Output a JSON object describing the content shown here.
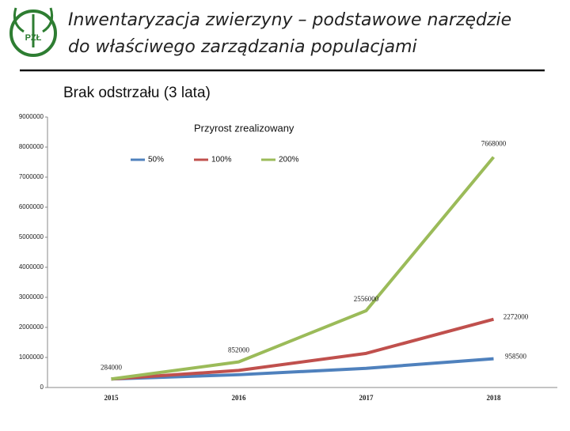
{
  "header": {
    "title_lines": [
      "Inwentaryzacja zwierzyny – podstawowe narzędzie",
      "do właściwego zarządzania populacjami"
    ],
    "logo_text": "PZŁ"
  },
  "slide_subtitle": "Brak odstrzału (3 lata)",
  "chart_data": {
    "type": "line",
    "title": "Przyrost zrealizowany",
    "categories": [
      "2015",
      "2016",
      "2017",
      "2018"
    ],
    "series": [
      {
        "name": "50%",
        "color": "#4f81bd",
        "values": [
          284000,
          426000,
          639000,
          958500
        ]
      },
      {
        "name": "100%",
        "color": "#c0504d",
        "values": [
          284000,
          568000,
          1136000,
          2272000
        ]
      },
      {
        "name": "200%",
        "color": "#9bbb59",
        "values": [
          284000,
          852000,
          2556000,
          7668000
        ]
      }
    ],
    "ylim": [
      0,
      9000000
    ],
    "yticks": [
      0,
      1000000,
      2000000,
      3000000,
      4000000,
      5000000,
      6000000,
      7000000,
      8000000,
      9000000
    ],
    "legend": "top",
    "grid": false
  }
}
